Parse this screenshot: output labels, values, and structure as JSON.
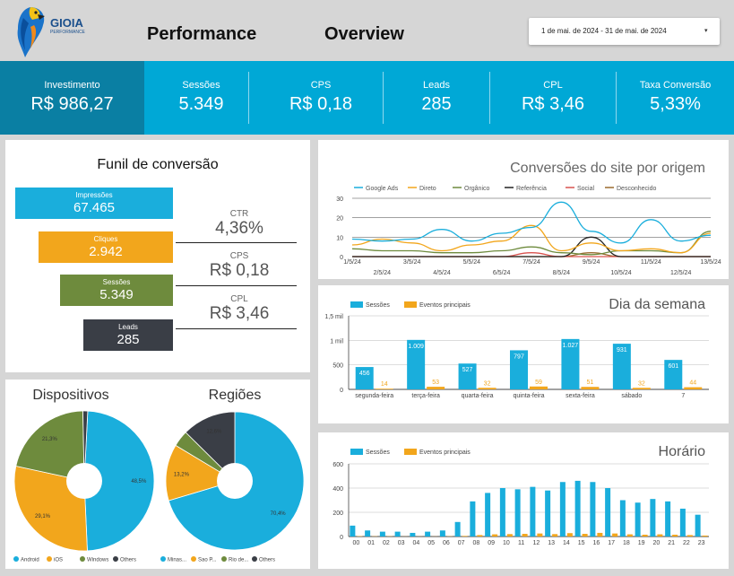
{
  "header": {
    "logo_text": "GIOIA",
    "logo_sub": "PERFORMANCE",
    "title_left": "Performance",
    "title_right": "Overview",
    "date_range": "1 de mai. de 2024 - 31 de mai. de 2024"
  },
  "kpis": [
    {
      "label": "Investimento",
      "value": "R$ 986,27"
    },
    {
      "label": "Sessões",
      "value": "5.349"
    },
    {
      "label": "CPS",
      "value": "R$ 0,18"
    },
    {
      "label": "Leads",
      "value": "285"
    },
    {
      "label": "CPL",
      "value": "R$ 3,46"
    },
    {
      "label": "Taxa Conversão",
      "value": "5,33%"
    }
  ],
  "funnel": {
    "title": "Funil de conversão",
    "steps": [
      {
        "label": "Impressões",
        "value": "67.465",
        "color": "#1aaedc"
      },
      {
        "label": "Cliques",
        "value": "2.942",
        "color": "#f2a61c"
      },
      {
        "label": "Sessões",
        "value": "5.349",
        "color": "#6e8b3d"
      },
      {
        "label": "Leads",
        "value": "285",
        "color": "#3a3e46"
      }
    ],
    "metrics": [
      {
        "label": "CTR",
        "value": "4,36%"
      },
      {
        "label": "CPS",
        "value": "R$ 0,18"
      },
      {
        "label": "CPL",
        "value": "R$ 3,46"
      }
    ]
  },
  "colors": {
    "primary": "#00a8d6",
    "kpi_dark": "#0a7fa3",
    "orange": "#f2a61c",
    "green": "#6e8b3d",
    "dark": "#3a3e46"
  },
  "chart_data": [
    {
      "type": "line",
      "title": "Conversões do site por origem",
      "x": [
        "1/5/24",
        "2/5/24",
        "3/5/24",
        "4/5/24",
        "5/5/24",
        "6/5/24",
        "7/5/24",
        "8/5/24",
        "9/5/24",
        "10/5/24",
        "11/5/24",
        "12/5/24",
        "13/5/24"
      ],
      "ylim": [
        0,
        30
      ],
      "yticks": [
        0,
        10,
        20,
        30
      ],
      "series": [
        {
          "name": "Google Ads",
          "color": "#1aaedc",
          "values": [
            9,
            8,
            9,
            14,
            8,
            12,
            15,
            28,
            13,
            7,
            19,
            8,
            11
          ]
        },
        {
          "name": "Direto",
          "color": "#f2a61c",
          "values": [
            6,
            9,
            7,
            3,
            6,
            8,
            16,
            3,
            7,
            3,
            4,
            2,
            12
          ]
        },
        {
          "name": "Orgânico",
          "color": "#6e8b3d",
          "values": [
            4,
            3,
            3,
            2,
            2,
            3,
            5,
            2,
            1,
            3,
            3,
            2,
            13
          ]
        },
        {
          "name": "Referência",
          "color": "#222222",
          "values": [
            0,
            0,
            0,
            0,
            0,
            0,
            0,
            0,
            10,
            0,
            0,
            0,
            0
          ]
        },
        {
          "name": "Social",
          "color": "#d9534f",
          "values": [
            0,
            0,
            0,
            0,
            0,
            0,
            2,
            0,
            0,
            0,
            0,
            0,
            0
          ]
        },
        {
          "name": "Desconhecido",
          "color": "#9b6a2f",
          "values": [
            0,
            0,
            0,
            0,
            0,
            0,
            0,
            0,
            2,
            0,
            0,
            0,
            0
          ]
        }
      ]
    },
    {
      "type": "bar",
      "title": "Dia da semana",
      "categories": [
        "segunda-feira",
        "terça-feira",
        "quarta-feira",
        "quinta-feira",
        "sexta-feira",
        "sábado",
        "7"
      ],
      "ylim": [
        0,
        1500
      ],
      "yticks": [
        {
          "v": 0,
          "l": "0"
        },
        {
          "v": 500,
          "l": "500"
        },
        {
          "v": 1000,
          "l": "1 mil"
        },
        {
          "v": 1500,
          "l": "1,5 mil"
        }
      ],
      "series": [
        {
          "name": "Sessões",
          "color": "#1aaedc",
          "values": [
            456,
            1009,
            527,
            797,
            1027,
            931,
            601
          ],
          "labels": [
            "456",
            "1.009",
            "527",
            "797",
            "1.027",
            "931",
            "601"
          ]
        },
        {
          "name": "Eventos principais",
          "color": "#f2a61c",
          "values": [
            14,
            53,
            32,
            59,
            51,
            32,
            44
          ],
          "labels": [
            "14",
            "53",
            "32",
            "59",
            "51",
            "32",
            "44"
          ]
        }
      ]
    },
    {
      "type": "bar",
      "title": "Horário",
      "categories": [
        "00",
        "01",
        "02",
        "03",
        "04",
        "05",
        "06",
        "07",
        "08",
        "09",
        "10",
        "11",
        "12",
        "13",
        "14",
        "15",
        "16",
        "17",
        "18",
        "19",
        "20",
        "21",
        "22",
        "23"
      ],
      "ylim": [
        0,
        600
      ],
      "yticks": [
        {
          "v": 0,
          "l": "0"
        },
        {
          "v": 200,
          "l": "200"
        },
        {
          "v": 400,
          "l": "400"
        },
        {
          "v": 600,
          "l": "600"
        }
      ],
      "series": [
        {
          "name": "Sessões",
          "color": "#1aaedc",
          "values": [
            90,
            50,
            40,
            40,
            30,
            40,
            50,
            120,
            290,
            360,
            400,
            390,
            410,
            380,
            450,
            460,
            450,
            400,
            300,
            280,
            310,
            290,
            230,
            180
          ]
        },
        {
          "name": "Eventos principais",
          "color": "#f2a61c",
          "values": [
            3,
            2,
            2,
            1,
            1,
            1,
            2,
            5,
            12,
            18,
            20,
            22,
            25,
            20,
            28,
            22,
            30,
            25,
            18,
            15,
            18,
            15,
            12,
            8
          ]
        }
      ]
    },
    {
      "type": "pie",
      "title": "Dispositivos",
      "labels": [
        "Android",
        "iOS",
        "Windows",
        "Others"
      ],
      "values": [
        48.5,
        29.1,
        21.3,
        1.1
      ],
      "slice_labels": [
        "48,5%",
        "29,1%",
        "21,3%",
        ""
      ],
      "colors": [
        "#1aaedc",
        "#f2a61c",
        "#6e8b3d",
        "#3a3e46"
      ]
    },
    {
      "type": "pie",
      "title": "Regiões",
      "labels": [
        "Minas...",
        "Sao P...",
        "Rio de...",
        "Others"
      ],
      "values": [
        70.4,
        13.2,
        3.8,
        12.6
      ],
      "slice_labels": [
        "70,4%",
        "13,2%",
        "",
        "12,6%"
      ],
      "colors": [
        "#1aaedc",
        "#f2a61c",
        "#6e8b3d",
        "#3a3e46"
      ]
    }
  ]
}
